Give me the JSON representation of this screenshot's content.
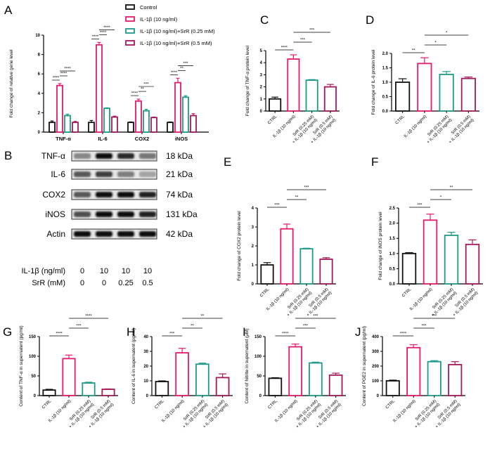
{
  "colors": {
    "control": "#111111",
    "il1b": "#e8196e",
    "srr025": "#1f9a8a",
    "srr05": "#a3195b"
  },
  "x_labels_protein": [
    "CTRL",
    "IL-1β (10 ng/ml)",
    "SrR (0.25 mM)|+ IL-1β (10 ng/ml)",
    "SrR (0.5 mM)|+ IL-1β (10 ng/ml)"
  ],
  "panel_B": {
    "letter": "B",
    "rows": [
      {
        "label": "TNF-α",
        "kda": "18 kDa",
        "band_intensity": [
          0.35,
          1.0,
          0.85,
          0.45
        ]
      },
      {
        "label": "IL-6",
        "kda": "21 kDa",
        "band_intensity": [
          0.6,
          0.75,
          0.4,
          0.2
        ]
      },
      {
        "label": "COX2",
        "kda": "74 kDa",
        "band_intensity": [
          0.6,
          1.0,
          1.0,
          0.9
        ]
      },
      {
        "label": "iNOS",
        "kda": "131 kDa",
        "band_intensity": [
          0.65,
          1.0,
          1.0,
          0.9
        ]
      },
      {
        "label": "Actin",
        "kda": "42 kDa",
        "band_intensity": [
          1.0,
          1.0,
          1.0,
          1.0
        ]
      }
    ],
    "treatments": [
      {
        "label": "IL-1β (ng/ml)",
        "values": [
          "0",
          "10",
          "10",
          "10"
        ]
      },
      {
        "label": "SrR (mM)",
        "values": [
          "0",
          "0",
          "0.25",
          "0.5"
        ]
      }
    ]
  },
  "chart_data": [
    {
      "panel": "A",
      "type": "bar",
      "ylabel": "Fold change of relative gene level",
      "ylim": [
        0,
        10
      ],
      "yticks": [
        "0",
        "2",
        "4",
        "6",
        "8",
        "10"
      ],
      "categories": [
        "TNF-α",
        "IL-6",
        "COX2",
        "iNOS"
      ],
      "legend": [
        "Control",
        "IL-1β (10 ng/ml)",
        "IL-1β (10 ng/ml)+SrR (0.25 mM)",
        "IL-1β (10 ng/ml)+SrR (0.5 mM)"
      ],
      "legend_position": "top-right",
      "series": [
        {
          "name": "Control",
          "values": [
            1.0,
            1.0,
            1.0,
            1.0
          ],
          "errors": [
            0.15,
            0.2,
            0.05,
            0.05
          ]
        },
        {
          "name": "IL-1β (10 ng/ml)",
          "values": [
            4.8,
            9.0,
            3.2,
            5.1
          ],
          "errors": [
            0.2,
            0.25,
            0.2,
            0.45
          ]
        },
        {
          "name": "IL-1β (10 ng/ml)+SrR (0.25 mM)",
          "values": [
            1.7,
            2.45,
            2.2,
            3.6
          ],
          "errors": [
            0.15,
            0.05,
            0.15,
            0.15
          ]
        },
        {
          "name": "IL-1β (10 ng/ml)+SrR (0.5 mM)",
          "values": [
            1.0,
            1.55,
            1.5,
            1.7
          ],
          "errors": [
            0.1,
            0.1,
            0.05,
            0.2
          ]
        }
      ],
      "significance": [
        [
          {
            "from": 0,
            "to": 1,
            "label": "****"
          },
          {
            "from": 1,
            "to": 2,
            "label": "****"
          },
          {
            "from": 1,
            "to": 3,
            "label": "****"
          }
        ],
        [
          {
            "from": 0,
            "to": 1,
            "label": "****"
          },
          {
            "from": 1,
            "to": 2,
            "label": "****"
          },
          {
            "from": 1,
            "to": 3,
            "label": "****"
          }
        ],
        [
          {
            "from": 0,
            "to": 1,
            "label": "****"
          },
          {
            "from": 1,
            "to": 2,
            "label": "**"
          },
          {
            "from": 1,
            "to": 3,
            "label": "***"
          }
        ],
        [
          {
            "from": 0,
            "to": 1,
            "label": "****"
          },
          {
            "from": 1,
            "to": 2,
            "label": "**"
          },
          {
            "from": 1,
            "to": 3,
            "label": "***"
          }
        ]
      ]
    },
    {
      "panel": "C",
      "type": "bar",
      "ylabel": "Fold change of TNF-α protein level",
      "ylim": [
        0,
        5
      ],
      "yticks": [
        "0",
        "1",
        "2",
        "3",
        "4",
        "5"
      ],
      "values": [
        1.0,
        4.3,
        2.55,
        2.0
      ],
      "errors": [
        0.15,
        0.35,
        0.05,
        0.2
      ],
      "significance": [
        {
          "from": 0,
          "to": 1,
          "label": "****"
        },
        {
          "from": 1,
          "to": 2,
          "label": "***"
        },
        {
          "from": 1,
          "to": 3,
          "label": "***"
        }
      ]
    },
    {
      "panel": "D",
      "type": "bar",
      "ylabel": "Fold change of IL-6 protein level",
      "ylim": [
        0,
        2
      ],
      "yticks": [
        "0.0",
        "0.5",
        "1.0",
        "1.5",
        "2.0"
      ],
      "values": [
        1.0,
        1.65,
        1.27,
        1.13
      ],
      "errors": [
        0.12,
        0.2,
        0.1,
        0.05
      ],
      "significance": [
        {
          "from": 0,
          "to": 1,
          "label": "**"
        },
        {
          "from": 1,
          "to": 2,
          "label": "*"
        },
        {
          "from": 1,
          "to": 3,
          "label": "*"
        }
      ]
    },
    {
      "panel": "E",
      "type": "bar",
      "ylabel": "Fold change of COX2 protein level",
      "ylim": [
        0,
        4
      ],
      "yticks": [
        "0",
        "1",
        "2",
        "3",
        "4"
      ],
      "values": [
        1.0,
        2.9,
        1.85,
        1.3
      ],
      "errors": [
        0.12,
        0.25,
        0.03,
        0.08
      ],
      "significance": [
        {
          "from": 0,
          "to": 1,
          "label": "***"
        },
        {
          "from": 1,
          "to": 2,
          "label": "**"
        },
        {
          "from": 1,
          "to": 3,
          "label": "***"
        }
      ]
    },
    {
      "panel": "F",
      "type": "bar",
      "ylabel": "Fold change of iNOS protein level",
      "ylim": [
        0,
        2.5
      ],
      "yticks": [
        "0.0",
        "0.5",
        "1.0",
        "1.5",
        "2.0",
        "2.5"
      ],
      "values": [
        1.0,
        2.1,
        1.6,
        1.3
      ],
      "errors": [
        0.03,
        0.2,
        0.1,
        0.15
      ],
      "significance": [
        {
          "from": 0,
          "to": 1,
          "label": "***"
        },
        {
          "from": 1,
          "to": 2,
          "label": "*"
        },
        {
          "from": 1,
          "to": 3,
          "label": "**"
        }
      ]
    },
    {
      "panel": "G",
      "type": "bar",
      "ylabel": "Content of TNF-α in supernatent (pg/ml)",
      "ylim": [
        0,
        150
      ],
      "yticks": [
        "0",
        "50",
        "100",
        "150"
      ],
      "values": [
        14,
        94,
        32,
        16
      ],
      "errors": [
        2,
        9,
        2,
        1
      ],
      "significance": [
        {
          "from": 0,
          "to": 1,
          "label": "****"
        },
        {
          "from": 1,
          "to": 2,
          "label": "***"
        },
        {
          "from": 1,
          "to": 3,
          "label": "****"
        }
      ]
    },
    {
      "panel": "H",
      "type": "bar",
      "ylabel": "Content of IL-6 in supernatent (pg/ml)",
      "ylim": [
        0,
        40
      ],
      "yticks": [
        "0",
        "10",
        "20",
        "30",
        "40"
      ],
      "values": [
        9.5,
        29,
        21.3,
        12.2
      ],
      "errors": [
        0.5,
        3,
        0.7,
        2.5
      ],
      "significance": [
        {
          "from": 0,
          "to": 1,
          "label": "***"
        },
        {
          "from": 1,
          "to": 2,
          "label": "**"
        },
        {
          "from": 1,
          "to": 3,
          "label": "**"
        }
      ]
    },
    {
      "panel": "I",
      "type": "bar",
      "ylabel": "Content of Nitrite in supernatent (μM)",
      "ylim": [
        0,
        150
      ],
      "yticks": [
        "0",
        "50",
        "100",
        "150"
      ],
      "values": [
        44,
        124,
        83,
        52
      ],
      "errors": [
        1.5,
        7,
        2,
        5
      ],
      "significance": [
        {
          "from": 0,
          "to": 1,
          "label": "****"
        },
        {
          "from": 1,
          "to": 2,
          "label": "***"
        },
        {
          "from": 1,
          "to": 3,
          "label": "***"
        }
      ]
    },
    {
      "panel": "J",
      "type": "bar",
      "ylabel": "Content of PGE2 in supernatent (pg/ml)",
      "ylim": [
        0,
        400
      ],
      "yticks": [
        "0",
        "100",
        "200",
        "300",
        "400"
      ],
      "values": [
        100,
        325,
        230,
        210
      ],
      "errors": [
        5,
        20,
        7,
        20
      ],
      "significance": [
        {
          "from": 0,
          "to": 1,
          "label": "****"
        },
        {
          "from": 1,
          "to": 2,
          "label": "***"
        },
        {
          "from": 1,
          "to": 3,
          "label": "***"
        }
      ]
    }
  ]
}
